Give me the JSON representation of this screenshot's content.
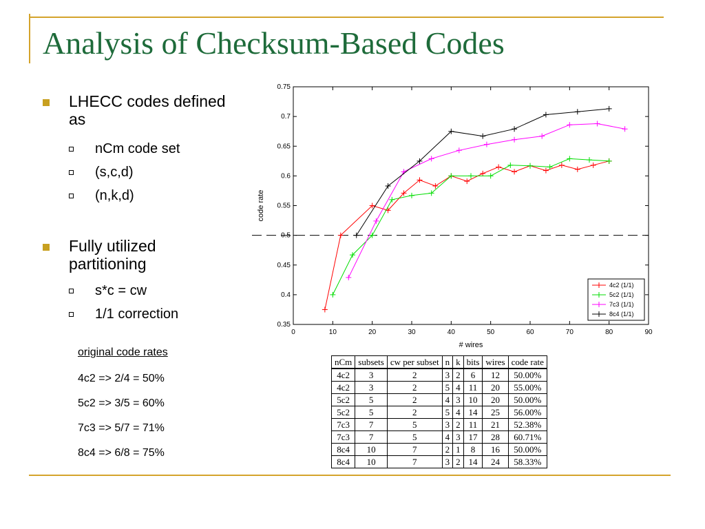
{
  "title": "Analysis of Checksum-Based Codes",
  "bullets": [
    {
      "text": "LHECC codes defined as",
      "subs": [
        "nCm code set",
        "(s,c,d)",
        "(n,k,d)"
      ]
    },
    {
      "text": "Fully utilized partitioning",
      "subs": [
        "s*c = cw",
        "1/1 correction"
      ]
    }
  ],
  "original_rates": {
    "heading": "original code rates",
    "items": [
      "4c2 => 2/4 = 50%",
      "5c2 => 3/5 = 60%",
      "7c3 => 5/7 = 71%",
      "8c4 => 6/8 = 75%"
    ]
  },
  "chart_data": {
    "type": "line",
    "xlabel": "# wires",
    "ylabel": "code rate",
    "xlim": [
      0,
      90
    ],
    "ylim": [
      0.35,
      0.75
    ],
    "xticks": [
      "0",
      "10",
      "20",
      "30",
      "40",
      "50",
      "60",
      "70",
      "80",
      "90"
    ],
    "yticks": [
      "0.35",
      "0.4",
      "0.45",
      "0.5",
      "0.55",
      "0.6",
      "0.65",
      "0.7",
      "0.75"
    ],
    "reference_line": 0.5,
    "legend_position": "bottom-right",
    "series": [
      {
        "name": "4c2 (1/1)",
        "color": "#ff0000",
        "x": [
          8,
          12,
          20,
          24,
          28,
          32,
          36,
          40,
          44,
          48,
          52,
          56,
          60,
          64,
          68,
          72,
          76,
          80
        ],
        "y": [
          0.375,
          0.5,
          0.55,
          0.542,
          0.571,
          0.593,
          0.583,
          0.6,
          0.591,
          0.604,
          0.615,
          0.607,
          0.617,
          0.609,
          0.618,
          0.611,
          0.618,
          0.625
        ]
      },
      {
        "name": "5c2 (1/1)",
        "color": "#00dd00",
        "x": [
          10,
          15,
          20,
          25,
          30,
          35,
          40,
          45,
          50,
          55,
          60,
          65,
          70,
          75,
          80
        ],
        "y": [
          0.4,
          0.467,
          0.5,
          0.56,
          0.567,
          0.571,
          0.6,
          0.6,
          0.6,
          0.618,
          0.617,
          0.615,
          0.629,
          0.627,
          0.625
        ]
      },
      {
        "name": "7c3 (1/1)",
        "color": "#ff00ff",
        "x": [
          14,
          21,
          28,
          35,
          42,
          49,
          56,
          63,
          70,
          77,
          84
        ],
        "y": [
          0.429,
          0.524,
          0.607,
          0.629,
          0.643,
          0.653,
          0.661,
          0.667,
          0.686,
          0.688,
          0.679
        ]
      },
      {
        "name": "8c4 (1/1)",
        "color": "#000000",
        "x": [
          16,
          24,
          32,
          40,
          48,
          56,
          64,
          72,
          80
        ],
        "y": [
          0.5,
          0.583,
          0.625,
          0.675,
          0.667,
          0.679,
          0.703,
          0.708,
          0.713
        ]
      }
    ]
  },
  "table": {
    "headers": [
      "nCm",
      "subsets",
      "cw per subset",
      "n",
      "k",
      "bits",
      "wires",
      "code rate"
    ],
    "rows": [
      [
        "4c2",
        "3",
        "2",
        "3",
        "2",
        "6",
        "12",
        "50.00%"
      ],
      [
        "4c2",
        "3",
        "2",
        "5",
        "4",
        "11",
        "20",
        "55.00%"
      ],
      [
        "5c2",
        "5",
        "2",
        "4",
        "3",
        "10",
        "20",
        "50.00%"
      ],
      [
        "5c2",
        "5",
        "2",
        "5",
        "4",
        "14",
        "25",
        "56.00%"
      ],
      [
        "7c3",
        "7",
        "5",
        "3",
        "2",
        "11",
        "21",
        "52.38%"
      ],
      [
        "7c3",
        "7",
        "5",
        "4",
        "3",
        "17",
        "28",
        "60.71%"
      ],
      [
        "8c4",
        "10",
        "7",
        "2",
        "1",
        "8",
        "16",
        "50.00%"
      ],
      [
        "8c4",
        "10",
        "7",
        "3",
        "2",
        "14",
        "24",
        "58.33%"
      ]
    ]
  }
}
